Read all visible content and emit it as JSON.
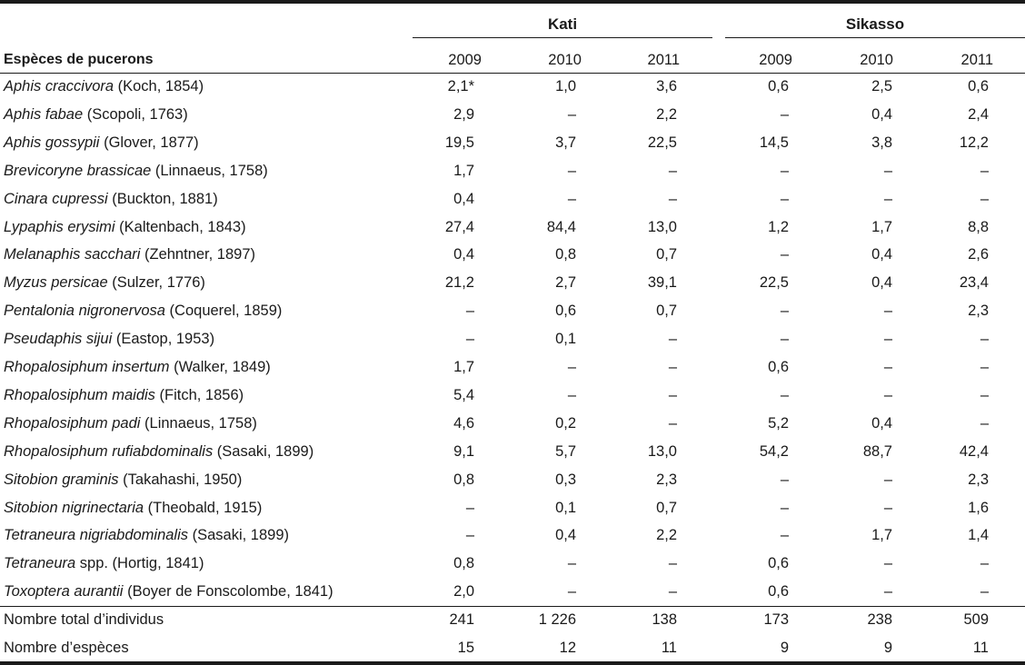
{
  "groups": [
    {
      "label": "Kati"
    },
    {
      "label": "Sikasso"
    }
  ],
  "header": {
    "species_col": "Espèces de pucerons",
    "years": [
      "2009",
      "2010",
      "2011",
      "2009",
      "2010",
      "2011"
    ]
  },
  "rows": [
    {
      "name": "Aphis craccivora",
      "author": " (Koch, 1854)",
      "values": [
        "2,1*",
        "1,0",
        "3,6",
        "0,6",
        "2,5",
        "0,6"
      ]
    },
    {
      "name": "Aphis fabae",
      "author": " (Scopoli, 1763)",
      "values": [
        "2,9",
        "–",
        "2,2",
        "–",
        "0,4",
        "2,4"
      ]
    },
    {
      "name": "Aphis gossypii",
      "author": " (Glover, 1877)",
      "values": [
        "19,5",
        "3,7",
        "22,5",
        "14,5",
        "3,8",
        "12,2"
      ]
    },
    {
      "name": "Brevicoryne brassicae",
      "author": " (Linnaeus, 1758)",
      "values": [
        "1,7",
        "–",
        "–",
        "–",
        "–",
        "–"
      ]
    },
    {
      "name": "Cinara cupressi",
      "author": " (Buckton, 1881)",
      "values": [
        "0,4",
        "–",
        "–",
        "–",
        "–",
        "–"
      ]
    },
    {
      "name": "Lypaphis erysimi",
      "author": " (Kaltenbach, 1843)",
      "values": [
        "27,4",
        "84,4",
        "13,0",
        "1,2",
        "1,7",
        "8,8"
      ]
    },
    {
      "name": "Melanaphis sacchari",
      "author": " (Zehntner, 1897)",
      "values": [
        "0,4",
        "0,8",
        "0,7",
        "–",
        "0,4",
        "2,6"
      ]
    },
    {
      "name": "Myzus persicae",
      "author": " (Sulzer, 1776)",
      "values": [
        "21,2",
        "2,7",
        "39,1",
        "22,5",
        "0,4",
        "23,4"
      ]
    },
    {
      "name": "Pentalonia nigronervosa",
      "author": " (Coquerel, 1859)",
      "values": [
        "–",
        "0,6",
        "0,7",
        "–",
        "–",
        "2,3"
      ]
    },
    {
      "name": "Pseudaphis sijui",
      "author": " (Eastop, 1953)",
      "values": [
        "–",
        "0,1",
        "–",
        "–",
        "–",
        "–"
      ]
    },
    {
      "name": "Rhopalosiphum insertum",
      "author": " (Walker, 1849)",
      "values": [
        "1,7",
        "–",
        "–",
        "0,6",
        "–",
        "–"
      ]
    },
    {
      "name": "Rhopalosiphum maidis",
      "author": " (Fitch, 1856)",
      "values": [
        "5,4",
        "–",
        "–",
        "–",
        "–",
        "–"
      ]
    },
    {
      "name": "Rhopalosiphum padi",
      "author": " (Linnaeus, 1758)",
      "values": [
        "4,6",
        "0,2",
        "–",
        "5,2",
        "0,4",
        "–"
      ]
    },
    {
      "name": "Rhopalosiphum rufiabdominalis",
      "author": " (Sasaki, 1899)",
      "values": [
        "9,1",
        "5,7",
        "13,0",
        "54,2",
        "88,7",
        "42,4"
      ]
    },
    {
      "name": "Sitobion graminis",
      "author": " (Takahashi, 1950)",
      "values": [
        "0,8",
        "0,3",
        "2,3",
        "–",
        "–",
        "2,3"
      ]
    },
    {
      "name": "Sitobion nigrinectaria",
      "author": " (Theobald, 1915)",
      "values": [
        "–",
        "0,1",
        "0,7",
        "–",
        "–",
        "1,6"
      ]
    },
    {
      "name": "Tetraneura nigriabdominalis",
      "author": " (Sasaki, 1899)",
      "values": [
        "–",
        "0,4",
        "2,2",
        "–",
        "1,7",
        "1,4"
      ]
    },
    {
      "name": "Tetraneura",
      "author": " spp. (Hortig, 1841)",
      "values": [
        "0,8",
        "–",
        "–",
        "0,6",
        "–",
        "–"
      ]
    },
    {
      "name": "Toxoptera aurantii",
      "author": " (Boyer de Fonscolombe, 1841)",
      "values": [
        "2,0",
        "–",
        "–",
        "0,6",
        "–",
        "–"
      ]
    }
  ],
  "totals": [
    {
      "label": "Nombre total d’individus",
      "values": [
        "241",
        "1 226",
        "138",
        "173",
        "238",
        "509"
      ]
    },
    {
      "label": "Nombre d’espèces",
      "values": [
        "15",
        "12",
        "11",
        "9",
        "9",
        "11"
      ]
    }
  ]
}
